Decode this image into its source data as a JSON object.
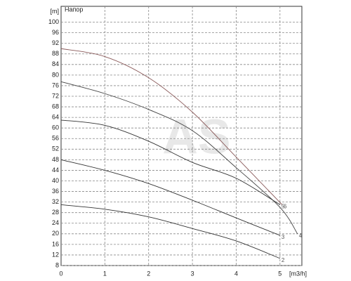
{
  "chart_data": {
    "type": "line",
    "title": "Напор",
    "x_label": "[m3/h]",
    "watermark": "AS",
    "xlim": [
      0,
      5.5
    ],
    "ylim": [
      8,
      106
    ],
    "xticks": [
      0,
      1,
      2,
      3,
      4,
      5
    ],
    "yticks": [
      8,
      12,
      16,
      20,
      24,
      28,
      32,
      36,
      40,
      44,
      48,
      52,
      56,
      60,
      64,
      68,
      72,
      76,
      80,
      84,
      88,
      92,
      96,
      100,
      {
        "value": 104,
        "label": "[m]"
      }
    ],
    "grid": true,
    "series": [
      {
        "name": "2",
        "color": "#333333",
        "x": [
          0,
          1,
          2,
          3,
          4,
          5
        ],
        "values": [
          31,
          29.3,
          26.4,
          22,
          17.3,
          10.7
        ]
      },
      {
        "name": "3",
        "color": "#333333",
        "x": [
          0,
          1,
          2,
          3,
          4,
          5
        ],
        "values": [
          48,
          44,
          39,
          32.7,
          26,
          19.4
        ]
      },
      {
        "name": "4",
        "color": "#444444",
        "x": [
          0,
          1,
          2,
          3,
          4,
          5,
          5.4
        ],
        "values": [
          77.5,
          73,
          67,
          59,
          45,
          30,
          20
        ]
      },
      {
        "name": "5",
        "color": "#333333",
        "x": [
          0,
          1,
          2,
          3,
          4,
          5
        ],
        "values": [
          63,
          61,
          55,
          47,
          41,
          31
        ]
      },
      {
        "name": "6",
        "color": "#8a5a5a",
        "x": [
          0,
          1,
          2,
          3,
          4,
          5.05
        ],
        "values": [
          90,
          87,
          79,
          66,
          49,
          31
        ]
      }
    ]
  }
}
